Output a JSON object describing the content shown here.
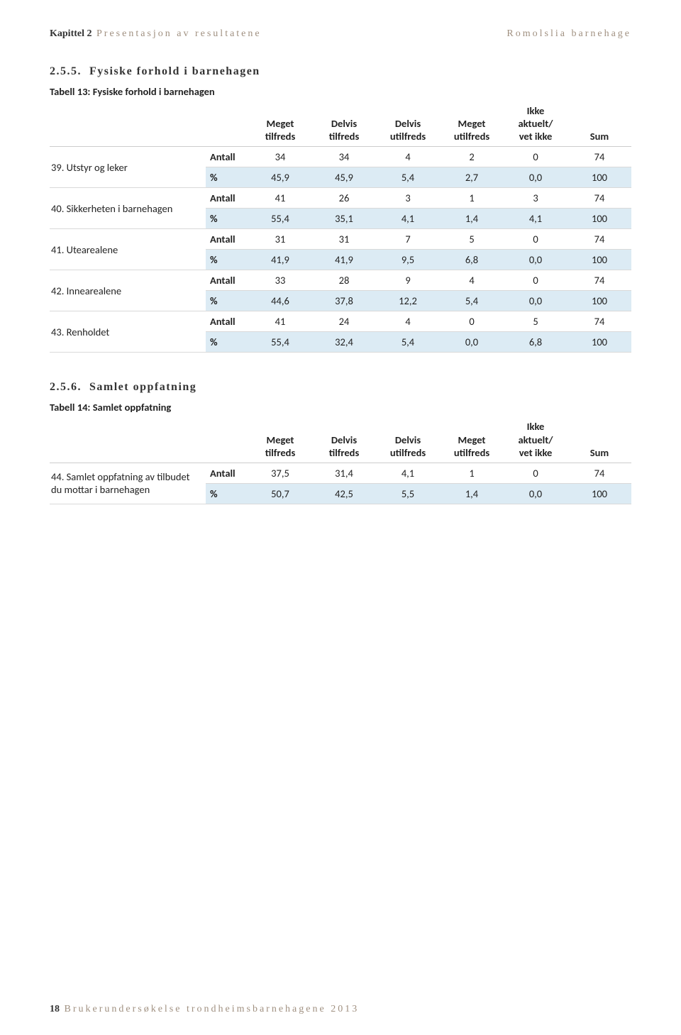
{
  "header": {
    "chapter_strong": "Kapittel 2",
    "chapter_rest": "Presentasjon av resultatene",
    "right": "Romolslia barnehage"
  },
  "colors": {
    "header_muted": "#a09080",
    "text": "#222222",
    "row_shade": "#dcebf4",
    "border": "#d9d9d9",
    "background": "#ffffff"
  },
  "section1": {
    "num": "2.5.5.",
    "title": "Fysiske forhold i barnehagen",
    "caption": "Tabell 13: Fysiske forhold i barnehagen"
  },
  "section2": {
    "num": "2.5.6.",
    "title": "Samlet oppfatning",
    "caption": "Tabell 14: Samlet oppfatning"
  },
  "columns": {
    "c1": "Meget\ntilfreds",
    "c2": "Delvis\ntilfreds",
    "c3": "Delvis\nutilfreds",
    "c4": "Meget\nutilfreds",
    "c5": "Ikke\naktuelt/\nvet ikke",
    "c6": "Sum"
  },
  "measure": {
    "antall": "Antall",
    "pct": "%"
  },
  "t13": {
    "r1": {
      "label": "39. Utstyr og leker",
      "a": [
        "34",
        "34",
        "4",
        "2",
        "0",
        "74"
      ],
      "p": [
        "45,9",
        "45,9",
        "5,4",
        "2,7",
        "0,0",
        "100"
      ]
    },
    "r2": {
      "label": "40. Sikkerheten i barnehagen",
      "a": [
        "41",
        "26",
        "3",
        "1",
        "3",
        "74"
      ],
      "p": [
        "55,4",
        "35,1",
        "4,1",
        "1,4",
        "4,1",
        "100"
      ]
    },
    "r3": {
      "label": "41. Utearealene",
      "a": [
        "31",
        "31",
        "7",
        "5",
        "0",
        "74"
      ],
      "p": [
        "41,9",
        "41,9",
        "9,5",
        "6,8",
        "0,0",
        "100"
      ]
    },
    "r4": {
      "label": "42. Innearealene",
      "a": [
        "33",
        "28",
        "9",
        "4",
        "0",
        "74"
      ],
      "p": [
        "44,6",
        "37,8",
        "12,2",
        "5,4",
        "0,0",
        "100"
      ]
    },
    "r5": {
      "label": "43. Renholdet",
      "a": [
        "41",
        "24",
        "4",
        "0",
        "5",
        "74"
      ],
      "p": [
        "55,4",
        "32,4",
        "5,4",
        "0,0",
        "6,8",
        "100"
      ]
    }
  },
  "t14": {
    "r1": {
      "label": "44. Samlet oppfatning av tilbudet du mottar i barnehagen",
      "a": [
        "37,5",
        "31,4",
        "4,1",
        "1",
        "0",
        "74"
      ],
      "p": [
        "50,7",
        "42,5",
        "5,5",
        "1,4",
        "0,0",
        "100"
      ]
    }
  },
  "footer": {
    "page": "18",
    "text": "Brukerundersøkelse trondheimsbarnehagene 2013"
  }
}
